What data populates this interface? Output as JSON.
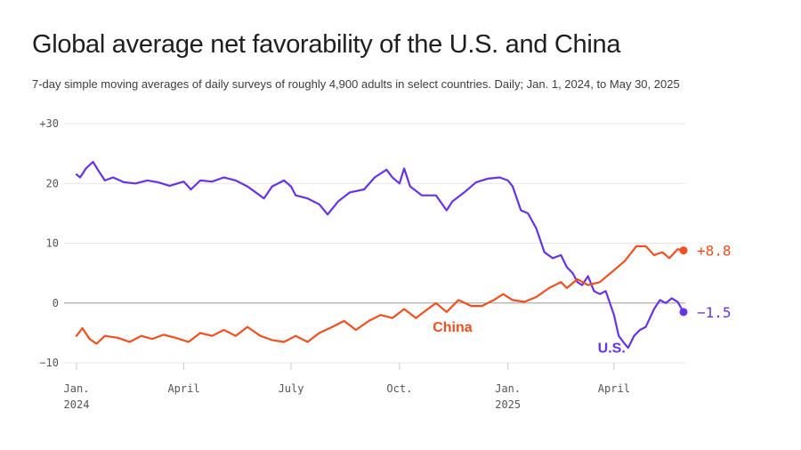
{
  "chart_data": {
    "type": "line",
    "title": "Global average net favorability of the U.S. and China",
    "subtitle": "7-day simple moving averages of daily surveys of roughly 4,900 adults in select countries. Daily; Jan. 1, 2024, to May 30, 2025",
    "xlabel": "",
    "ylabel": "",
    "x_range": [
      "2024-01-01",
      "2025-05-30"
    ],
    "ylim": [
      -10,
      30
    ],
    "y_ticks": [
      {
        "value": 30,
        "label": "+30"
      },
      {
        "value": 20,
        "label": "20"
      },
      {
        "value": 10,
        "label": "10"
      },
      {
        "value": 0,
        "label": "0"
      },
      {
        "value": -10,
        "label": "−10"
      }
    ],
    "x_ticks": [
      {
        "date": "2024-01-01",
        "label": "Jan.",
        "sublabel": "2024"
      },
      {
        "date": "2024-04-01",
        "label": "April",
        "sublabel": ""
      },
      {
        "date": "2024-07-01",
        "label": "July",
        "sublabel": ""
      },
      {
        "date": "2024-10-01",
        "label": "Oct.",
        "sublabel": ""
      },
      {
        "date": "2025-01-01",
        "label": "Jan.",
        "sublabel": "2025"
      },
      {
        "date": "2025-04-01",
        "label": "April",
        "sublabel": ""
      }
    ],
    "grid": "horizontal",
    "legend": "none",
    "series": [
      {
        "name": "U.S.",
        "color": "#6633e6",
        "end_label": "−1.5",
        "points": [
          [
            "2024-01-01",
            21.5
          ],
          [
            "2024-01-04",
            21.0
          ],
          [
            "2024-01-09",
            22.5
          ],
          [
            "2024-01-15",
            23.6
          ],
          [
            "2024-01-20",
            22.0
          ],
          [
            "2024-01-25",
            20.5
          ],
          [
            "2024-02-01",
            21.0
          ],
          [
            "2024-02-10",
            20.2
          ],
          [
            "2024-02-20",
            20.0
          ],
          [
            "2024-03-01",
            20.5
          ],
          [
            "2024-03-10",
            20.2
          ],
          [
            "2024-03-20",
            19.6
          ],
          [
            "2024-04-01",
            20.3
          ],
          [
            "2024-04-07",
            19.0
          ],
          [
            "2024-04-15",
            20.5
          ],
          [
            "2024-04-25",
            20.3
          ],
          [
            "2024-05-05",
            21.0
          ],
          [
            "2024-05-15",
            20.5
          ],
          [
            "2024-05-25",
            19.5
          ],
          [
            "2024-06-01",
            18.5
          ],
          [
            "2024-06-08",
            17.5
          ],
          [
            "2024-06-15",
            19.5
          ],
          [
            "2024-06-25",
            20.5
          ],
          [
            "2024-07-01",
            19.5
          ],
          [
            "2024-07-05",
            18.0
          ],
          [
            "2024-07-15",
            17.5
          ],
          [
            "2024-07-25",
            16.5
          ],
          [
            "2024-08-01",
            14.8
          ],
          [
            "2024-08-10",
            17.0
          ],
          [
            "2024-08-20",
            18.5
          ],
          [
            "2024-09-01",
            19.0
          ],
          [
            "2024-09-10",
            21.0
          ],
          [
            "2024-09-20",
            22.3
          ],
          [
            "2024-09-25",
            21.0
          ],
          [
            "2024-10-01",
            20.0
          ],
          [
            "2024-10-05",
            22.5
          ],
          [
            "2024-10-10",
            19.5
          ],
          [
            "2024-10-20",
            18.0
          ],
          [
            "2024-11-01",
            18.0
          ],
          [
            "2024-11-10",
            15.5
          ],
          [
            "2024-11-15",
            17.0
          ],
          [
            "2024-11-25",
            18.5
          ],
          [
            "2024-12-05",
            20.2
          ],
          [
            "2024-12-15",
            20.8
          ],
          [
            "2024-12-25",
            21.0
          ],
          [
            "2025-01-01",
            20.5
          ],
          [
            "2025-01-05",
            19.5
          ],
          [
            "2025-01-12",
            15.5
          ],
          [
            "2025-01-18",
            15.0
          ],
          [
            "2025-01-25",
            12.5
          ],
          [
            "2025-02-01",
            8.5
          ],
          [
            "2025-02-08",
            7.5
          ],
          [
            "2025-02-15",
            8.0
          ],
          [
            "2025-02-20",
            6.0
          ],
          [
            "2025-02-25",
            5.0
          ],
          [
            "2025-03-01",
            3.5
          ],
          [
            "2025-03-05",
            3.0
          ],
          [
            "2025-03-10",
            4.5
          ],
          [
            "2025-03-15",
            2.0
          ],
          [
            "2025-03-20",
            1.5
          ],
          [
            "2025-03-25",
            2.0
          ],
          [
            "2025-04-01",
            -2.0
          ],
          [
            "2025-04-05",
            -5.5
          ],
          [
            "2025-04-10",
            -6.8
          ],
          [
            "2025-04-13",
            -7.5
          ],
          [
            "2025-04-18",
            -5.5
          ],
          [
            "2025-04-23",
            -4.5
          ],
          [
            "2025-04-28",
            -4.0
          ],
          [
            "2025-05-05",
            -1.0
          ],
          [
            "2025-05-10",
            0.5
          ],
          [
            "2025-05-15",
            0.0
          ],
          [
            "2025-05-20",
            0.8
          ],
          [
            "2025-05-25",
            0.2
          ],
          [
            "2025-05-30",
            -1.5
          ]
        ]
      },
      {
        "name": "China",
        "color": "#f0501e",
        "end_label": "+8.8",
        "points": [
          [
            "2024-01-01",
            -5.5
          ],
          [
            "2024-01-06",
            -4.2
          ],
          [
            "2024-01-12",
            -6.0
          ],
          [
            "2024-01-18",
            -6.8
          ],
          [
            "2024-01-25",
            -5.5
          ],
          [
            "2024-02-05",
            -5.8
          ],
          [
            "2024-02-15",
            -6.5
          ],
          [
            "2024-02-25",
            -5.5
          ],
          [
            "2024-03-05",
            -6.0
          ],
          [
            "2024-03-15",
            -5.3
          ],
          [
            "2024-03-25",
            -5.8
          ],
          [
            "2024-04-05",
            -6.5
          ],
          [
            "2024-04-15",
            -5.0
          ],
          [
            "2024-04-25",
            -5.5
          ],
          [
            "2024-05-05",
            -4.5
          ],
          [
            "2024-05-15",
            -5.5
          ],
          [
            "2024-05-25",
            -4.0
          ],
          [
            "2024-06-05",
            -5.5
          ],
          [
            "2024-06-15",
            -6.2
          ],
          [
            "2024-06-25",
            -6.5
          ],
          [
            "2024-07-05",
            -5.5
          ],
          [
            "2024-07-15",
            -6.5
          ],
          [
            "2024-07-25",
            -5.0
          ],
          [
            "2024-08-05",
            -4.0
          ],
          [
            "2024-08-15",
            -3.0
          ],
          [
            "2024-08-25",
            -4.5
          ],
          [
            "2024-09-05",
            -3.0
          ],
          [
            "2024-09-15",
            -2.0
          ],
          [
            "2024-09-25",
            -2.5
          ],
          [
            "2024-10-05",
            -1.0
          ],
          [
            "2024-10-15",
            -2.5
          ],
          [
            "2024-10-25",
            -1.0
          ],
          [
            "2024-11-01",
            0.0
          ],
          [
            "2024-11-10",
            -1.5
          ],
          [
            "2024-11-20",
            0.5
          ],
          [
            "2024-12-01",
            -0.5
          ],
          [
            "2024-12-10",
            -0.5
          ],
          [
            "2024-12-20",
            0.5
          ],
          [
            "2024-12-28",
            1.5
          ],
          [
            "2025-01-05",
            0.5
          ],
          [
            "2025-01-15",
            0.2
          ],
          [
            "2025-01-25",
            1.0
          ],
          [
            "2025-02-05",
            2.5
          ],
          [
            "2025-02-15",
            3.5
          ],
          [
            "2025-02-20",
            2.5
          ],
          [
            "2025-03-01",
            4.0
          ],
          [
            "2025-03-10",
            3.0
          ],
          [
            "2025-03-20",
            3.5
          ],
          [
            "2025-04-01",
            5.5
          ],
          [
            "2025-04-10",
            7.0
          ],
          [
            "2025-04-20",
            9.5
          ],
          [
            "2025-04-28",
            9.5
          ],
          [
            "2025-05-05",
            8.0
          ],
          [
            "2025-05-12",
            8.5
          ],
          [
            "2025-05-18",
            7.5
          ],
          [
            "2025-05-25",
            9.0
          ],
          [
            "2025-05-30",
            8.8
          ]
        ]
      }
    ]
  }
}
